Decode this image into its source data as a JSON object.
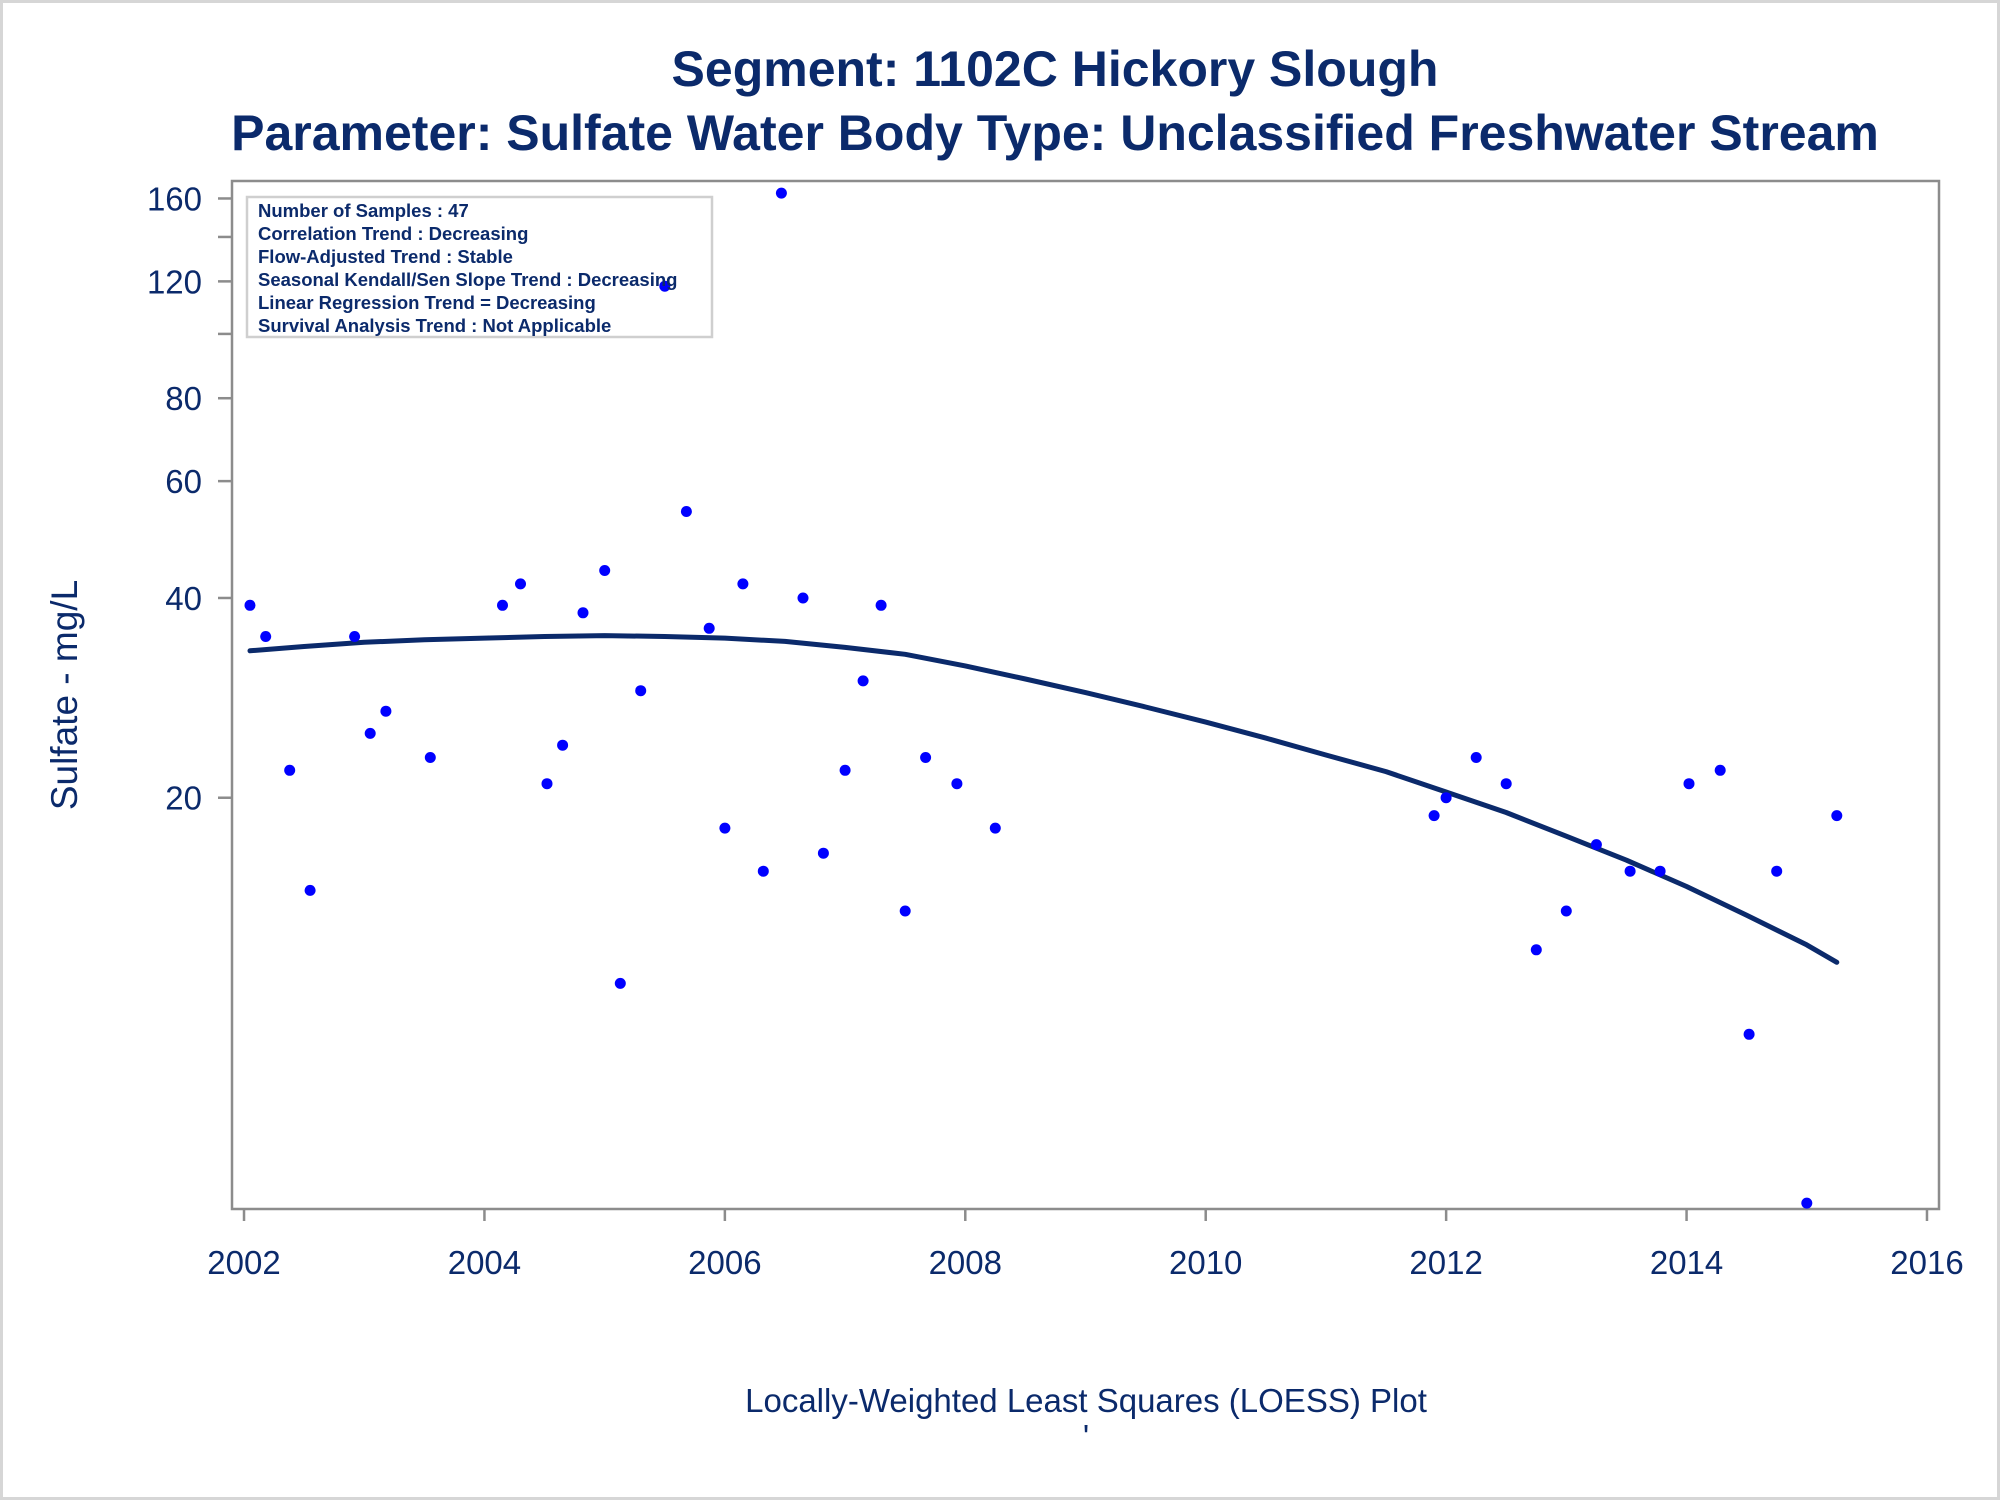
{
  "chart_data": {
    "type": "scatter",
    "title": "Segment: 1102C  Hickory Slough",
    "subtitle": "Parameter: Sulfate   Water Body Type: Unclassified Freshwater Stream",
    "xlabel": "",
    "ylabel": "Sulfate - mg/L",
    "footnote": "Locally-Weighted Least Squares (LOESS) Plot",
    "footnote_mark": "'",
    "xlim": [
      2001.9,
      2016.1
    ],
    "ylim": [
      4.8,
      170
    ],
    "y_scale": "log",
    "x_ticks": [
      2002,
      2004,
      2006,
      2008,
      2010,
      2012,
      2014,
      2016
    ],
    "y_ticks": [
      20,
      40,
      60,
      80,
      120,
      160
    ],
    "y_minor_ticks": [
      100,
      140
    ],
    "grid": false,
    "inset": {
      "position": "top-left",
      "lines": [
        "Number of Samples : 47",
        "Correlation Trend : Decreasing",
        "Flow-Adjusted Trend : Stable",
        "Seasonal Kendall/Sen Slope Trend : Decreasing",
        "Linear Regression Trend = Decreasing",
        "Survival Analysis Trend : Not Applicable"
      ]
    },
    "series": [
      {
        "type": "scatter",
        "color": "#0000ff",
        "points": [
          [
            2002.05,
            39
          ],
          [
            2002.18,
            35
          ],
          [
            2002.38,
            22
          ],
          [
            2002.55,
            14.5
          ],
          [
            2002.92,
            35
          ],
          [
            2003.05,
            25
          ],
          [
            2003.18,
            27
          ],
          [
            2003.55,
            23
          ],
          [
            2004.15,
            39
          ],
          [
            2004.3,
            42
          ],
          [
            2004.52,
            21
          ],
          [
            2004.65,
            24
          ],
          [
            2004.82,
            38
          ],
          [
            2005.0,
            44
          ],
          [
            2005.13,
            10.5
          ],
          [
            2005.3,
            29
          ],
          [
            2005.5,
            118
          ],
          [
            2005.68,
            54
          ],
          [
            2005.87,
            36
          ],
          [
            2006.0,
            18
          ],
          [
            2006.15,
            42
          ],
          [
            2006.32,
            15.5
          ],
          [
            2006.47,
            163
          ],
          [
            2006.82,
            16.5
          ],
          [
            2006.65,
            40
          ],
          [
            2007.0,
            22
          ],
          [
            2007.15,
            30
          ],
          [
            2007.3,
            39
          ],
          [
            2007.5,
            13.5
          ],
          [
            2007.67,
            23
          ],
          [
            2007.93,
            21
          ],
          [
            2008.25,
            18
          ],
          [
            2011.9,
            18.8
          ],
          [
            2012.0,
            20
          ],
          [
            2012.25,
            23
          ],
          [
            2012.5,
            21
          ],
          [
            2012.75,
            11.8
          ],
          [
            2013.0,
            13.5
          ],
          [
            2013.25,
            17
          ],
          [
            2013.53,
            15.5
          ],
          [
            2013.78,
            15.5
          ],
          [
            2014.02,
            21
          ],
          [
            2014.28,
            22
          ],
          [
            2014.52,
            8.8
          ],
          [
            2014.75,
            15.5
          ],
          [
            2015.0,
            4.9
          ],
          [
            2015.25,
            18.8
          ]
        ]
      },
      {
        "type": "line",
        "name": "",
        "color": "#0b2a6b",
        "points": [
          [
            2002.05,
            33.3
          ],
          [
            2002.5,
            33.8
          ],
          [
            2003.0,
            34.3
          ],
          [
            2003.5,
            34.6
          ],
          [
            2004.0,
            34.8
          ],
          [
            2004.5,
            35.0
          ],
          [
            2005.0,
            35.1
          ],
          [
            2005.5,
            35.0
          ],
          [
            2006.0,
            34.8
          ],
          [
            2006.5,
            34.4
          ],
          [
            2007.0,
            33.7
          ],
          [
            2007.5,
            32.9
          ],
          [
            2008.0,
            31.6
          ],
          [
            2008.5,
            30.2
          ],
          [
            2009.0,
            28.8
          ],
          [
            2009.5,
            27.4
          ],
          [
            2010.0,
            26.0
          ],
          [
            2010.5,
            24.6
          ],
          [
            2011.0,
            23.2
          ],
          [
            2011.5,
            21.9
          ],
          [
            2012.0,
            20.4
          ],
          [
            2012.5,
            19.0
          ],
          [
            2013.0,
            17.5
          ],
          [
            2013.5,
            16.1
          ],
          [
            2014.0,
            14.7
          ],
          [
            2014.5,
            13.3
          ],
          [
            2015.0,
            12.0
          ],
          [
            2015.25,
            11.3
          ]
        ]
      }
    ]
  }
}
